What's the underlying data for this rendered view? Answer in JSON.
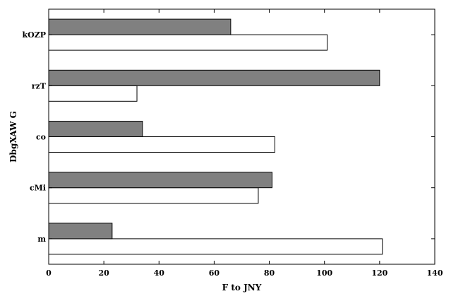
{
  "chart_data": {
    "type": "bar",
    "orientation": "horizontal",
    "title": "",
    "xlabel": "F   to JNY",
    "ylabel": "DbgXAW G",
    "categories": [
      "m",
      "cMi",
      "co",
      "rzT",
      "kOZP"
    ],
    "series": [
      {
        "color": "#ffffff",
        "values": [
          121,
          76,
          82,
          32,
          101
        ]
      },
      {
        "color": "#808080",
        "values": [
          23,
          81,
          34,
          120,
          66
        ]
      }
    ],
    "xlim": [
      0,
      140
    ],
    "xticks": [
      "0",
      "20",
      "40",
      "60",
      "80",
      "100",
      "120",
      "140"
    ],
    "grid": false,
    "legend": "none"
  }
}
